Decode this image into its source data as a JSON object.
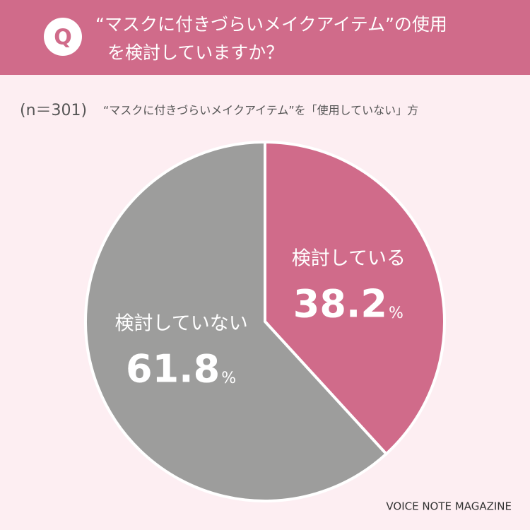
{
  "question_mark": "Q",
  "title_lines": [
    "“マスクに付きづらいメイクアイテム”の使用",
    "を検討していますか？"
  ],
  "sample_size": "(n＝301)",
  "source": "VOICE NOTE MAGAZINE",
  "chart_data": {
    "type": "pie",
    "subtitle": "“マスクに付きづらいメイクアイテム”を「使用していない」方",
    "categories": [
      "検討している",
      "検討していない"
    ],
    "values": [
      38.2,
      61.8
    ],
    "unit": "%",
    "colors": [
      "#d06b8a",
      "#9d9d9c"
    ]
  }
}
